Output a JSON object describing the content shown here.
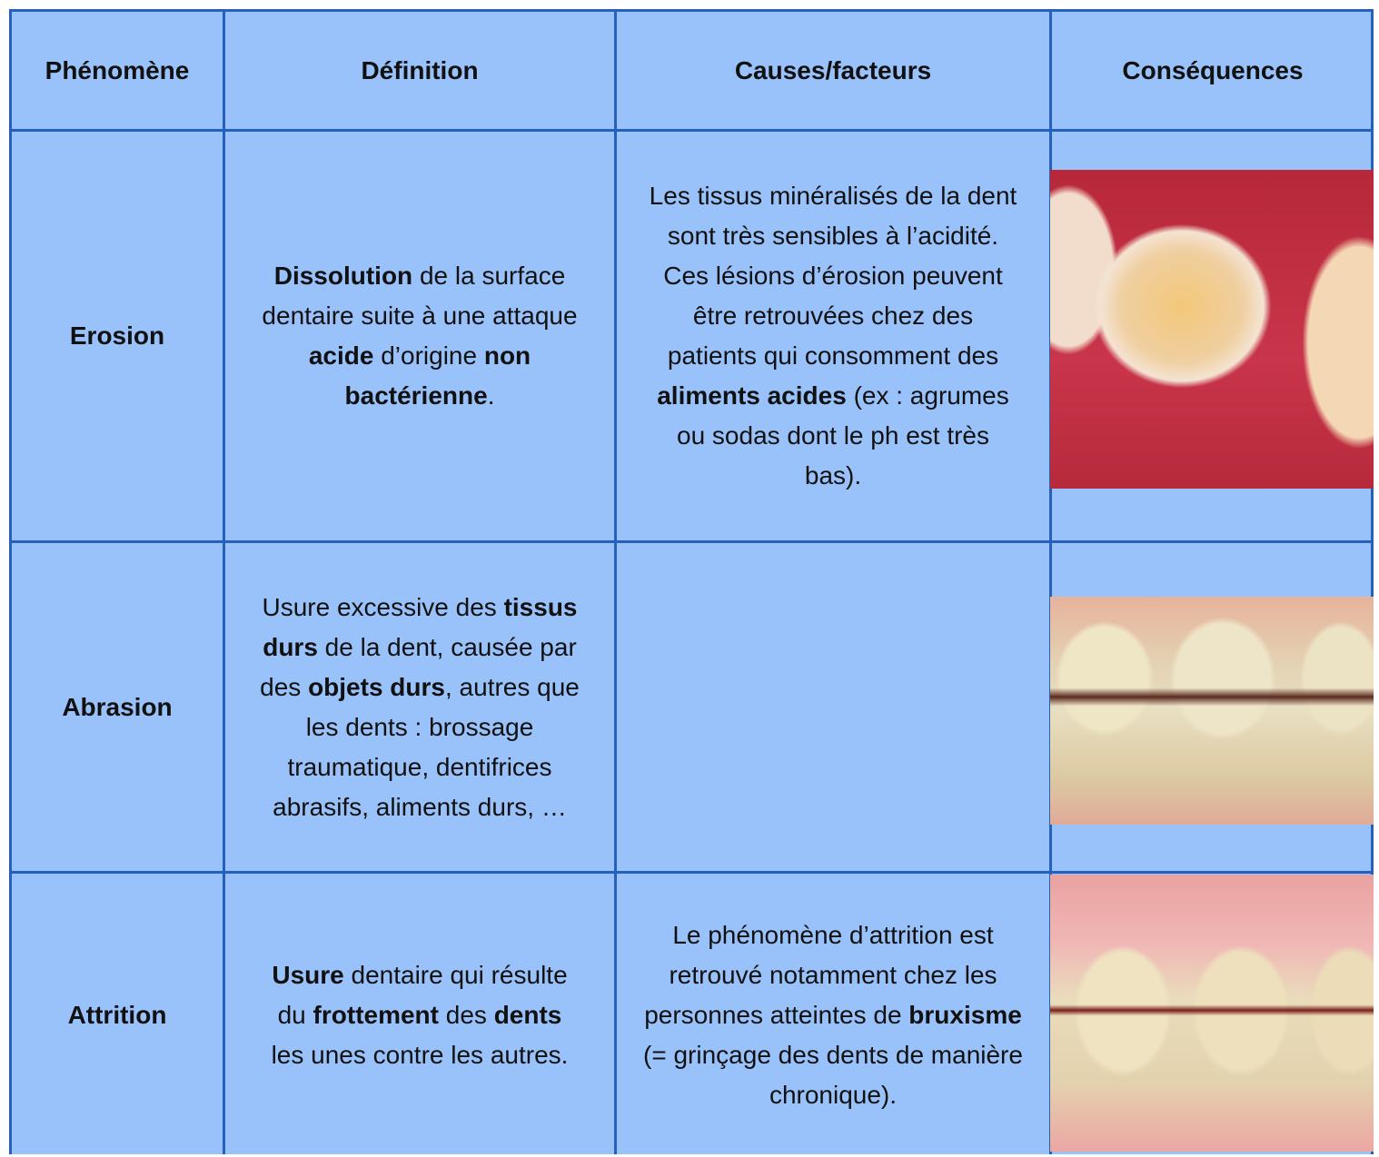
{
  "table": {
    "header": [
      "Phénomène",
      "Définition",
      "Causes/facteurs",
      "Conséquences"
    ],
    "rows": [
      {
        "phenomenon": "Erosion",
        "definition": [
          {
            "text": "Dissolution",
            "bold": true
          },
          {
            "text": " de la surface dentaire suite à une attaque "
          },
          {
            "text": "acide",
            "bold": true
          },
          {
            "text": " d’origine "
          },
          {
            "text": "non bactérienne",
            "bold": true
          },
          {
            "text": "."
          }
        ],
        "causes": [
          {
            "text": "Les tissus minéralisés de la dent sont très sensibles à l’acidité. Ces lésions d’érosion peuvent être retrouvées chez des patients qui consomment des "
          },
          {
            "text": "aliments acides",
            "bold": true
          },
          {
            "text": " (ex : agrumes ou sodas dont le ph est très bas)."
          }
        ]
      },
      {
        "phenomenon": "Abrasion",
        "definition": [
          {
            "text": "Usure excessive des "
          },
          {
            "text": "tissus durs",
            "bold": true
          },
          {
            "text": " de la dent, causée par des "
          },
          {
            "text": "objets durs",
            "bold": true
          },
          {
            "text": ", autres que les dents : brossage traumatique, dentifrices abrasifs, aliments durs, …"
          }
        ]
      },
      {
        "phenomenon": "Attrition",
        "definition": [
          {
            "text": "Usure",
            "bold": true
          },
          {
            "text": " dentaire qui résulte du "
          },
          {
            "text": "frottement",
            "bold": true
          },
          {
            "text": " des "
          },
          {
            "text": "dents",
            "bold": true
          },
          {
            "text": " les unes contre les autres."
          }
        ],
        "causes": [
          {
            "text": "Le phénomène d’attrition est retrouvé notamment chez les personnes atteintes de "
          },
          {
            "text": "bruxisme",
            "bold": true
          },
          {
            "text": " (= grinçage des dents de manière chronique)."
          }
        ]
      }
    ]
  }
}
